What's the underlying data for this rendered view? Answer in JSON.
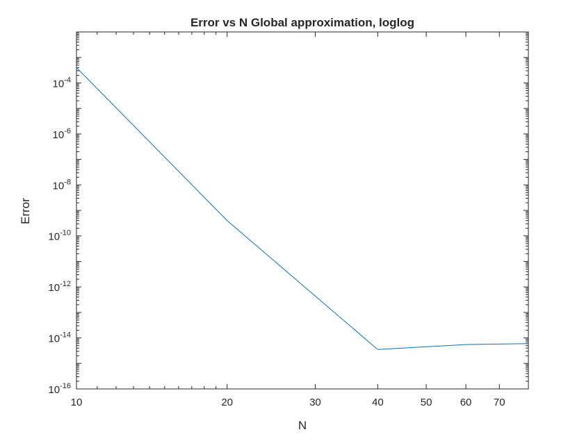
{
  "chart_data": {
    "type": "line",
    "title": "Error vs N Global approximation, loglog",
    "xlabel": "N",
    "ylabel": "Error",
    "xscale": "log",
    "yscale": "log",
    "xlim": [
      10,
      80
    ],
    "ylim": [
      1e-16,
      0.01
    ],
    "xticks": [
      {
        "value": 10,
        "label": "10"
      },
      {
        "value": 20,
        "label": "20"
      },
      {
        "value": 30,
        "label": "30"
      },
      {
        "value": 40,
        "label": "40"
      },
      {
        "value": 50,
        "label": "50"
      },
      {
        "value": 60,
        "label": "60"
      },
      {
        "value": 70,
        "label": "70"
      }
    ],
    "yticks": [
      {
        "value": 1e-16,
        "base": "10",
        "exp": "-16"
      },
      {
        "value": 1e-14,
        "base": "10",
        "exp": "-14"
      },
      {
        "value": 1e-12,
        "base": "10",
        "exp": "-12"
      },
      {
        "value": 1e-10,
        "base": "10",
        "exp": "-10"
      },
      {
        "value": 1e-08,
        "base": "10",
        "exp": "-8"
      },
      {
        "value": 1e-06,
        "base": "10",
        "exp": "-6"
      },
      {
        "value": 0.0001,
        "base": "10",
        "exp": "-4"
      }
    ],
    "grid": false,
    "series": [
      {
        "color": "#0072BD",
        "x": [
          10,
          20,
          40,
          60,
          80
        ],
        "y": [
          0.0004,
          4e-10,
          3.5e-15,
          5.5e-15,
          6e-15
        ]
      }
    ]
  }
}
